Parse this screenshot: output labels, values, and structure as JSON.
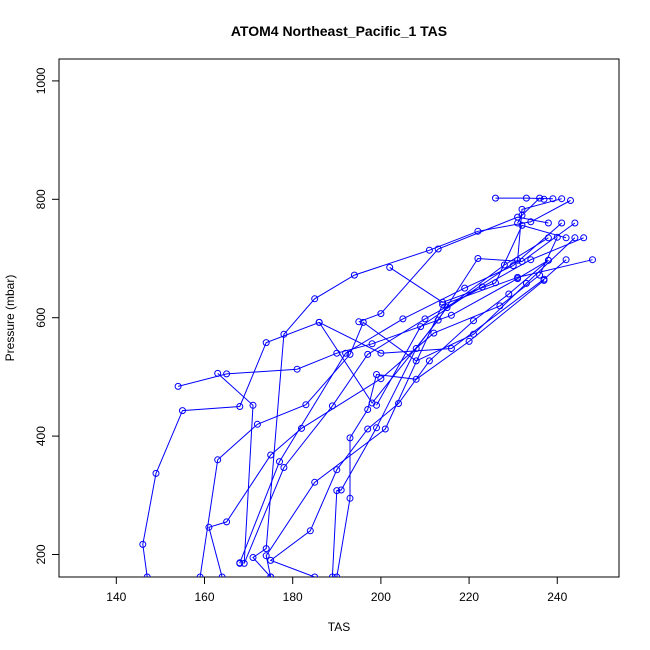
{
  "chart_data": {
    "type": "line",
    "title": "ATOM4 Northeast_Pacific_1 TAS",
    "xlabel": "TAS",
    "ylabel": "Pressure (mbar)",
    "xlim": [
      127,
      254
    ],
    "ylim": [
      1037,
      162
    ],
    "y_inverted": true,
    "xticks": [
      "140",
      "160",
      "180",
      "200",
      "220",
      "240"
    ],
    "yticks": [
      "200",
      "400",
      "600",
      "800",
      "1000"
    ],
    "color": "#0000ff",
    "grid": false,
    "series": [
      {
        "x": [
          147.0,
          146.0,
          149.0,
          155.0,
          168.0,
          174.0,
          186.0,
          200.0,
          216.0,
          237.0,
          242.0
        ],
        "y": [
          162,
          217,
          337,
          443,
          450,
          558,
          592,
          540,
          548,
          665,
          698
        ]
      },
      {
        "x": [
          159.0,
          163.0,
          172.0,
          183.0,
          193.0,
          196.0,
          208.0,
          221.0,
          233.0,
          244.0
        ],
        "y": [
          162,
          360,
          420,
          453,
          538,
          592,
          527,
          572,
          658,
          735
        ]
      },
      {
        "x": [
          164.0,
          161.0,
          165.0,
          175.0,
          182.0,
          200.0,
          212.0,
          227.0,
          236.0,
          240.0
        ],
        "y": [
          162,
          246,
          255,
          368,
          413,
          497,
          574,
          620,
          672,
          736
        ]
      },
      {
        "x": [
          154.0,
          165.0,
          181.0,
          190.0,
          198.0,
          216.0,
          231.0,
          238.0
        ],
        "y": [
          484,
          505,
          513,
          540,
          556,
          604,
          666,
          697
        ]
      },
      {
        "x": [
          163.0,
          171.0,
          169.0,
          178.0,
          189.0,
          197.0,
          210.0,
          223.0,
          234.0,
          246.0
        ],
        "y": [
          506,
          452,
          185,
          347,
          451,
          538,
          598,
          652,
          698,
          735
        ]
      },
      {
        "x": [
          168.0,
          168.0,
          177.0,
          192.0,
          205.0,
          219.0,
          230.0,
          241.0
        ],
        "y": [
          185,
          186,
          357,
          540,
          598,
          650,
          688,
          760
        ]
      },
      {
        "x": [
          175.0,
          174.0,
          185.0,
          201.0,
          214.0,
          231.0,
          248.0
        ],
        "y": [
          162,
          198,
          322,
          412,
          622,
          668,
          698
        ]
      },
      {
        "x": [
          175.0,
          171.0,
          174.0,
          178.0,
          185.0,
          194.0,
          211.0,
          222.0,
          234.0,
          243.0
        ],
        "y": [
          162,
          195,
          210,
          572,
          632,
          672,
          714,
          746,
          762,
          798
        ]
      },
      {
        "x": [
          190.0,
          193.0,
          193.0,
          197.0,
          199.0,
          208.0,
          220.0,
          237.0
        ],
        "y": [
          162,
          295,
          397,
          445,
          504,
          496,
          560,
          663
        ]
      },
      {
        "x": [
          185.0,
          175.0,
          184.0,
          190.0,
          197.0,
          204.0,
          211.0,
          221.0,
          229.0,
          238.0
        ],
        "y": [
          162,
          190,
          240,
          343,
          412,
          455,
          527,
          595,
          640,
          697
        ]
      },
      {
        "x": [
          186.0,
          198.0,
          213.0,
          222.0,
          232.0,
          244.0
        ],
        "y": [
          592,
          456,
          596,
          700,
          695,
          760
        ]
      },
      {
        "x": [
          189.0,
          190.0,
          191.0,
          199.0,
          208.0,
          215.0,
          228.0,
          238.0
        ],
        "y": [
          162,
          308,
          309,
          414,
          548,
          617,
          689,
          735
        ]
      },
      {
        "x": [
          199.0,
          209.0,
          231.0,
          232.0,
          241.0
        ],
        "y": [
          452,
          585,
          697,
          783,
          801
        ]
      },
      {
        "x": [
          202.0,
          214.0,
          226.0,
          232.0,
          242.0
        ],
        "y": [
          685,
          626,
          659,
          756,
          735
        ]
      },
      {
        "x": [
          195.0,
          200.0,
          213.0,
          231.0,
          238.0
        ],
        "y": [
          593,
          607,
          716,
          770,
          760
        ]
      },
      {
        "x": [
          231.0,
          232.0,
          236.0,
          237.0
        ],
        "y": [
          760,
          773,
          802,
          800
        ]
      },
      {
        "x": [
          226.0,
          233.0,
          239.0
        ],
        "y": [
          802,
          802,
          801
        ]
      }
    ]
  }
}
